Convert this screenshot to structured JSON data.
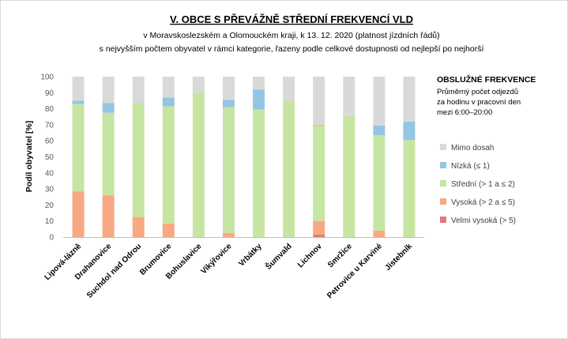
{
  "chart_data": {
    "type": "bar",
    "stacked": true,
    "title": "V. OBCE S PŘEVÁŽNĚ STŘEDNÍ FREKVENCÍ VLD",
    "subtitle_lines": [
      "v Moravskoslezském a Olomouckém  kraji, k 13. 12. 2020 (platnost jízdních řádů)",
      "s nejvyšším počtem  obyvatel v rámci kategorie, řazeny podle celkové dostupnosti od nejlepší po nejhorší"
    ],
    "ylabel": "Podíl obyvatel [%]",
    "xlabel": "",
    "ylim": [
      0,
      100
    ],
    "yticks": [
      0,
      10,
      20,
      30,
      40,
      50,
      60,
      70,
      80,
      90,
      100
    ],
    "grid": false,
    "categories": [
      "Lipová-lázně",
      "Drahanovice",
      "Suchdol nad Odrou",
      "Brumovice",
      "Bohuslavice",
      "Vikýřovice",
      "Vrbátky",
      "Šumvald",
      "Lichnov",
      "Smržice",
      "Petrovice u Karviné",
      "Jistebník"
    ],
    "series": [
      {
        "name": "Velmi vysoká (> 5)",
        "color": "#e07a78",
        "values": [
          0,
          0,
          0,
          0,
          0,
          0,
          0,
          0,
          1.5,
          0,
          0,
          0
        ]
      },
      {
        "name": "Vysoká (> 2 a ≤ 5)",
        "color": "#f8a882",
        "values": [
          28.5,
          26,
          12.5,
          8.5,
          0,
          2.5,
          0,
          0,
          8.5,
          0,
          4,
          0
        ]
      },
      {
        "name": "Střední (> 1 a ≤ 2)",
        "color": "#c6e5a3",
        "values": [
          54.5,
          51.5,
          71,
          73,
          90,
          78.5,
          79.5,
          85,
          59.5,
          75.5,
          59.5,
          60.5
        ]
      },
      {
        "name": "Nízká (≤ 1)",
        "color": "#94c5e3",
        "values": [
          2,
          6,
          0,
          5.5,
          0,
          4.5,
          12.5,
          0,
          0.5,
          0,
          6,
          11.5
        ]
      },
      {
        "name": "Mimo dosah",
        "color": "#d9d9d9",
        "values": [
          15,
          16.5,
          16.5,
          13,
          10,
          14.5,
          8,
          15,
          30,
          24.5,
          30.5,
          28
        ]
      }
    ],
    "legend": {
      "placement": "right",
      "heading": "OBSLUŽNÉ  FREKVENCE",
      "note_lines": [
        "Průměrný počet odjezdů",
        "za hodinu v pracovní den",
        "mezi 6:00–20:00"
      ],
      "order": [
        "Mimo dosah",
        "Nízká (≤ 1)",
        "Střední (> 1 a ≤ 2)",
        "Vysoká (> 2 a ≤ 5)",
        "Velmi vysoká (> 5)"
      ]
    }
  }
}
